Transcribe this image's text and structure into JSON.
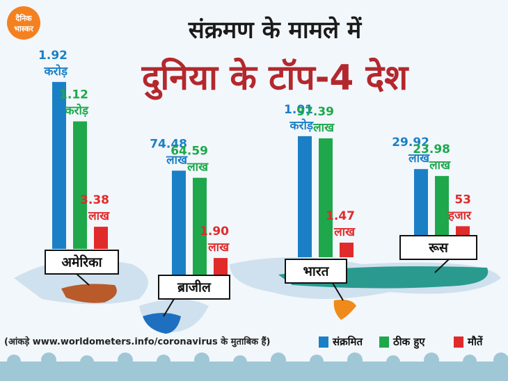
{
  "logo": {
    "lines": [
      "दैनिक",
      "भास्कर"
    ]
  },
  "chart_data": {
    "type": "bar",
    "title": "संक्रमण के मामले में",
    "subtitle": "दुनिया के टॉप-4 देश",
    "categories": [
      "अमेरिका",
      "ब्राजील",
      "भारत",
      "रूस"
    ],
    "series": [
      {
        "name": "संक्रमित",
        "color": "#1b7fc6",
        "values": [
          19200000,
          7448000,
          10100000,
          2992000
        ],
        "value_labels": [
          "1.92 करोड़",
          "74.48 लाख",
          "1.01 करोड़",
          "29.92 लाख"
        ]
      },
      {
        "name": "ठीक हुए",
        "color": "#1ea84b",
        "values": [
          11200000,
          6459000,
          9739000,
          2398000
        ],
        "value_labels": [
          "1.12 करोड़",
          "64.59 लाख",
          "97.39 लाख",
          "23.98 लाख"
        ]
      },
      {
        "name": "मौतें",
        "color": "#e12a2a",
        "values": [
          338000,
          190000,
          147000,
          53000
        ],
        "value_labels": [
          "3.38 लाख",
          "1.90 लाख",
          "1.47 लाख",
          "53 हजार"
        ]
      }
    ],
    "note": "(आंकड़े www.worldometers.info/coronavirus के मुताबिक हैं)"
  }
}
